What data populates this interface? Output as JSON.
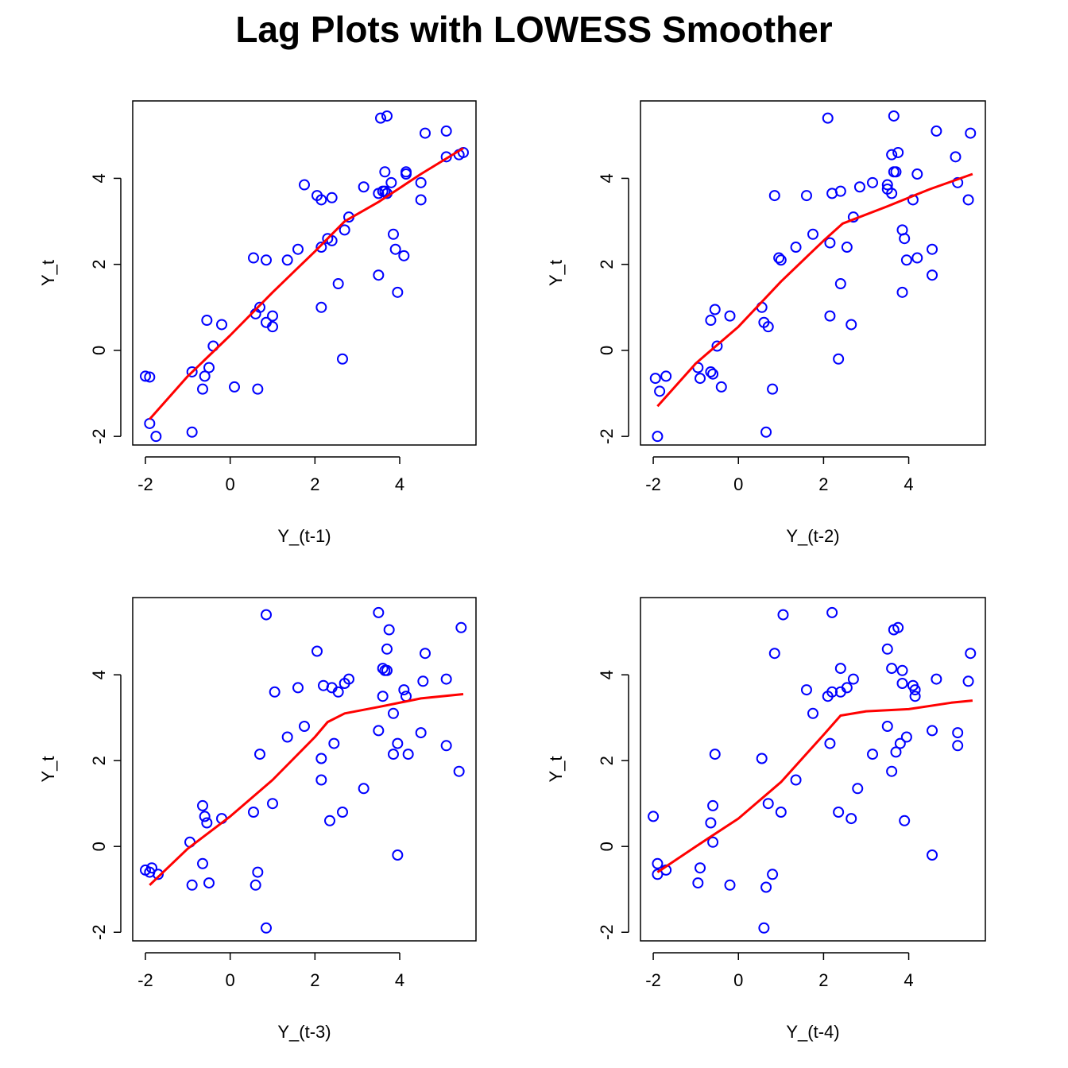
{
  "title": "Lag Plots with LOWESS Smoother",
  "colors": {
    "points": "#0000FF",
    "smoother": "#FF0000",
    "axes": "#000000"
  },
  "chart_data": [
    {
      "type": "scatter",
      "xlabel": "Y_(t-1)",
      "ylabel": "Y_t",
      "xlim": [
        -2.3,
        5.8
      ],
      "ylim": [
        -2.2,
        5.8
      ],
      "xticks": [
        -2,
        0,
        2,
        4
      ],
      "yticks": [
        -2,
        0,
        2,
        4
      ],
      "points": [
        [
          -1.9,
          -1.7
        ],
        [
          -1.75,
          -2.0
        ],
        [
          -2.0,
          -0.6
        ],
        [
          -1.9,
          -0.62
        ],
        [
          -0.9,
          -1.9
        ],
        [
          -0.9,
          -0.5
        ],
        [
          -0.65,
          -0.9
        ],
        [
          -0.6,
          -0.6
        ],
        [
          -0.55,
          0.7
        ],
        [
          -0.5,
          -0.4
        ],
        [
          -0.4,
          0.1
        ],
        [
          -0.2,
          0.6
        ],
        [
          0.1,
          -0.85
        ],
        [
          0.55,
          2.15
        ],
        [
          0.6,
          0.85
        ],
        [
          0.65,
          -0.9
        ],
        [
          0.7,
          1.0
        ],
        [
          0.85,
          2.1
        ],
        [
          0.85,
          0.65
        ],
        [
          1.0,
          0.55
        ],
        [
          1.0,
          0.8
        ],
        [
          1.35,
          2.1
        ],
        [
          1.6,
          2.35
        ],
        [
          1.75,
          3.85
        ],
        [
          2.05,
          3.6
        ],
        [
          2.15,
          3.5
        ],
        [
          2.15,
          2.4
        ],
        [
          2.15,
          1.0
        ],
        [
          2.3,
          2.6
        ],
        [
          2.4,
          3.55
        ],
        [
          2.4,
          2.55
        ],
        [
          2.55,
          1.55
        ],
        [
          2.65,
          -0.2
        ],
        [
          2.7,
          2.8
        ],
        [
          2.8,
          3.1
        ],
        [
          3.15,
          3.8
        ],
        [
          3.5,
          3.65
        ],
        [
          3.5,
          1.75
        ],
        [
          3.55,
          5.4
        ],
        [
          3.6,
          3.7
        ],
        [
          3.65,
          3.7
        ],
        [
          3.65,
          4.15
        ],
        [
          3.7,
          5.45
        ],
        [
          3.7,
          3.65
        ],
        [
          3.8,
          3.9
        ],
        [
          3.85,
          2.7
        ],
        [
          3.9,
          2.35
        ],
        [
          3.95,
          1.35
        ],
        [
          4.1,
          2.2
        ],
        [
          4.15,
          4.1
        ],
        [
          4.15,
          4.15
        ],
        [
          4.5,
          3.9
        ],
        [
          4.5,
          3.5
        ],
        [
          4.6,
          5.05
        ],
        [
          5.1,
          5.1
        ],
        [
          5.1,
          4.5
        ],
        [
          5.4,
          4.55
        ],
        [
          5.5,
          4.6
        ]
      ],
      "lowess": [
        [
          -1.9,
          -1.6
        ],
        [
          -1.0,
          -0.6
        ],
        [
          0.0,
          0.35
        ],
        [
          1.0,
          1.35
        ],
        [
          2.0,
          2.3
        ],
        [
          2.7,
          3.0
        ],
        [
          3.5,
          3.45
        ],
        [
          4.5,
          4.1
        ],
        [
          5.5,
          4.7
        ]
      ]
    },
    {
      "type": "scatter",
      "xlabel": "Y_(t-2)",
      "ylabel": "Y_t",
      "xlim": [
        -2.3,
        5.8
      ],
      "ylim": [
        -2.2,
        5.8
      ],
      "xticks": [
        -2,
        0,
        2,
        4
      ],
      "yticks": [
        -2,
        0,
        2,
        4
      ],
      "points": [
        [
          -1.95,
          -0.65
        ],
        [
          -1.9,
          -2.0
        ],
        [
          -1.85,
          -0.95
        ],
        [
          -1.7,
          -0.6
        ],
        [
          -0.95,
          -0.4
        ],
        [
          -0.9,
          -0.65
        ],
        [
          -0.65,
          -0.5
        ],
        [
          -0.6,
          -0.55
        ],
        [
          -0.65,
          0.7
        ],
        [
          -0.55,
          0.95
        ],
        [
          -0.5,
          0.1
        ],
        [
          -0.4,
          -0.85
        ],
        [
          -0.2,
          0.8
        ],
        [
          0.55,
          1.0
        ],
        [
          0.6,
          0.65
        ],
        [
          0.65,
          -1.9
        ],
        [
          0.7,
          0.55
        ],
        [
          0.8,
          -0.9
        ],
        [
          0.85,
          3.6
        ],
        [
          0.95,
          2.15
        ],
        [
          1.0,
          2.1
        ],
        [
          1.35,
          2.4
        ],
        [
          1.6,
          3.6
        ],
        [
          1.75,
          2.7
        ],
        [
          2.1,
          5.4
        ],
        [
          2.15,
          2.5
        ],
        [
          2.15,
          0.8
        ],
        [
          2.2,
          3.65
        ],
        [
          2.35,
          -0.2
        ],
        [
          2.4,
          3.7
        ],
        [
          2.4,
          1.55
        ],
        [
          2.55,
          2.4
        ],
        [
          2.65,
          0.6
        ],
        [
          2.7,
          3.1
        ],
        [
          2.85,
          3.8
        ],
        [
          3.15,
          3.9
        ],
        [
          3.5,
          3.85
        ],
        [
          3.5,
          3.75
        ],
        [
          3.6,
          3.65
        ],
        [
          3.6,
          4.55
        ],
        [
          3.65,
          4.15
        ],
        [
          3.65,
          5.45
        ],
        [
          3.7,
          4.15
        ],
        [
          3.75,
          4.6
        ],
        [
          3.85,
          2.8
        ],
        [
          3.85,
          1.35
        ],
        [
          3.9,
          2.6
        ],
        [
          3.95,
          2.1
        ],
        [
          4.1,
          3.5
        ],
        [
          4.2,
          2.15
        ],
        [
          4.2,
          4.1
        ],
        [
          4.55,
          2.35
        ],
        [
          4.55,
          1.75
        ],
        [
          4.65,
          5.1
        ],
        [
          5.1,
          4.5
        ],
        [
          5.15,
          3.9
        ],
        [
          5.4,
          3.5
        ],
        [
          5.45,
          5.05
        ]
      ],
      "lowess": [
        [
          -1.9,
          -1.3
        ],
        [
          -1.0,
          -0.3
        ],
        [
          0.0,
          0.55
        ],
        [
          1.0,
          1.6
        ],
        [
          2.0,
          2.55
        ],
        [
          2.45,
          2.95
        ],
        [
          3.5,
          3.35
        ],
        [
          4.5,
          3.75
        ],
        [
          5.5,
          4.1
        ]
      ]
    },
    {
      "type": "scatter",
      "xlabel": "Y_(t-3)",
      "ylabel": "Y_t",
      "xlim": [
        -2.3,
        5.8
      ],
      "ylim": [
        -2.2,
        5.8
      ],
      "xticks": [
        -2,
        0,
        2,
        4
      ],
      "yticks": [
        -2,
        0,
        2,
        4
      ],
      "points": [
        [
          -2.0,
          -0.55
        ],
        [
          -1.9,
          -0.6
        ],
        [
          -1.85,
          -0.5
        ],
        [
          -1.7,
          -0.65
        ],
        [
          -0.95,
          0.1
        ],
        [
          -0.9,
          -0.9
        ],
        [
          -0.65,
          -0.4
        ],
        [
          -0.65,
          0.95
        ],
        [
          -0.6,
          0.7
        ],
        [
          -0.55,
          0.55
        ],
        [
          -0.5,
          -0.85
        ],
        [
          -0.2,
          0.65
        ],
        [
          0.55,
          0.8
        ],
        [
          0.6,
          -0.9
        ],
        [
          0.65,
          -0.6
        ],
        [
          0.7,
          2.15
        ],
        [
          0.85,
          5.4
        ],
        [
          0.85,
          -1.9
        ],
        [
          1.0,
          1.0
        ],
        [
          1.05,
          3.6
        ],
        [
          1.35,
          2.55
        ],
        [
          1.6,
          3.7
        ],
        [
          1.75,
          2.8
        ],
        [
          2.05,
          4.55
        ],
        [
          2.15,
          2.05
        ],
        [
          2.15,
          1.55
        ],
        [
          2.2,
          3.75
        ],
        [
          2.35,
          0.6
        ],
        [
          2.4,
          3.7
        ],
        [
          2.45,
          2.4
        ],
        [
          2.55,
          3.6
        ],
        [
          2.65,
          0.8
        ],
        [
          2.7,
          3.8
        ],
        [
          2.8,
          3.9
        ],
        [
          3.15,
          1.35
        ],
        [
          3.5,
          5.45
        ],
        [
          3.5,
          2.7
        ],
        [
          3.6,
          4.15
        ],
        [
          3.6,
          3.5
        ],
        [
          3.65,
          4.1
        ],
        [
          3.7,
          4.6
        ],
        [
          3.7,
          4.1
        ],
        [
          3.75,
          5.05
        ],
        [
          3.85,
          2.15
        ],
        [
          3.85,
          3.1
        ],
        [
          3.95,
          2.4
        ],
        [
          3.95,
          -0.2
        ],
        [
          4.1,
          3.65
        ],
        [
          4.15,
          3.5
        ],
        [
          4.2,
          2.15
        ],
        [
          4.5,
          2.65
        ],
        [
          4.55,
          3.85
        ],
        [
          4.6,
          4.5
        ],
        [
          5.1,
          3.9
        ],
        [
          5.1,
          2.35
        ],
        [
          5.4,
          1.75
        ],
        [
          5.45,
          5.1
        ]
      ],
      "lowess": [
        [
          -1.9,
          -0.9
        ],
        [
          -1.0,
          -0.05
        ],
        [
          0.0,
          0.7
        ],
        [
          1.0,
          1.55
        ],
        [
          2.0,
          2.55
        ],
        [
          2.3,
          2.9
        ],
        [
          2.7,
          3.1
        ],
        [
          3.5,
          3.25
        ],
        [
          4.5,
          3.45
        ],
        [
          5.5,
          3.55
        ]
      ]
    },
    {
      "type": "scatter",
      "xlabel": "Y_(t-4)",
      "ylabel": "Y_t",
      "xlim": [
        -2.3,
        5.8
      ],
      "ylim": [
        -2.2,
        5.8
      ],
      "xticks": [
        -2,
        0,
        2,
        4
      ],
      "yticks": [
        -2,
        0,
        2,
        4
      ],
      "points": [
        [
          -2.0,
          0.7
        ],
        [
          -1.9,
          -0.4
        ],
        [
          -1.9,
          -0.65
        ],
        [
          -1.7,
          -0.55
        ],
        [
          -0.95,
          -0.85
        ],
        [
          -0.9,
          -0.5
        ],
        [
          -0.65,
          0.55
        ],
        [
          -0.6,
          0.1
        ],
        [
          -0.6,
          0.95
        ],
        [
          -0.55,
          2.15
        ],
        [
          -0.2,
          -0.9
        ],
        [
          0.55,
          2.05
        ],
        [
          0.6,
          -1.9
        ],
        [
          0.65,
          -0.95
        ],
        [
          0.7,
          1.0
        ],
        [
          0.8,
          -0.65
        ],
        [
          0.85,
          4.5
        ],
        [
          1.0,
          0.8
        ],
        [
          1.05,
          5.4
        ],
        [
          1.35,
          1.55
        ],
        [
          1.6,
          3.65
        ],
        [
          1.75,
          3.1
        ],
        [
          2.1,
          3.5
        ],
        [
          2.15,
          2.4
        ],
        [
          2.2,
          3.6
        ],
        [
          2.2,
          5.45
        ],
        [
          2.35,
          0.8
        ],
        [
          2.4,
          4.15
        ],
        [
          2.4,
          3.6
        ],
        [
          2.55,
          3.7
        ],
        [
          2.65,
          0.65
        ],
        [
          2.7,
          3.9
        ],
        [
          2.8,
          1.35
        ],
        [
          3.15,
          2.15
        ],
        [
          3.5,
          2.8
        ],
        [
          3.5,
          4.6
        ],
        [
          3.6,
          4.15
        ],
        [
          3.6,
          1.75
        ],
        [
          3.65,
          5.05
        ],
        [
          3.7,
          2.2
        ],
        [
          3.75,
          5.1
        ],
        [
          3.8,
          2.4
        ],
        [
          3.85,
          4.1
        ],
        [
          3.85,
          3.8
        ],
        [
          3.9,
          0.6
        ],
        [
          3.95,
          2.55
        ],
        [
          4.1,
          3.75
        ],
        [
          4.15,
          3.65
        ],
        [
          4.15,
          3.5
        ],
        [
          4.55,
          -0.2
        ],
        [
          4.55,
          2.7
        ],
        [
          4.65,
          3.9
        ],
        [
          5.15,
          2.65
        ],
        [
          5.15,
          2.35
        ],
        [
          5.4,
          3.85
        ],
        [
          5.45,
          4.5
        ]
      ],
      "lowess": [
        [
          -1.9,
          -0.6
        ],
        [
          -1.0,
          0.0
        ],
        [
          0.0,
          0.65
        ],
        [
          1.0,
          1.5
        ],
        [
          2.0,
          2.6
        ],
        [
          2.4,
          3.05
        ],
        [
          3.0,
          3.15
        ],
        [
          4.0,
          3.2
        ],
        [
          5.0,
          3.35
        ],
        [
          5.5,
          3.4
        ]
      ]
    }
  ]
}
